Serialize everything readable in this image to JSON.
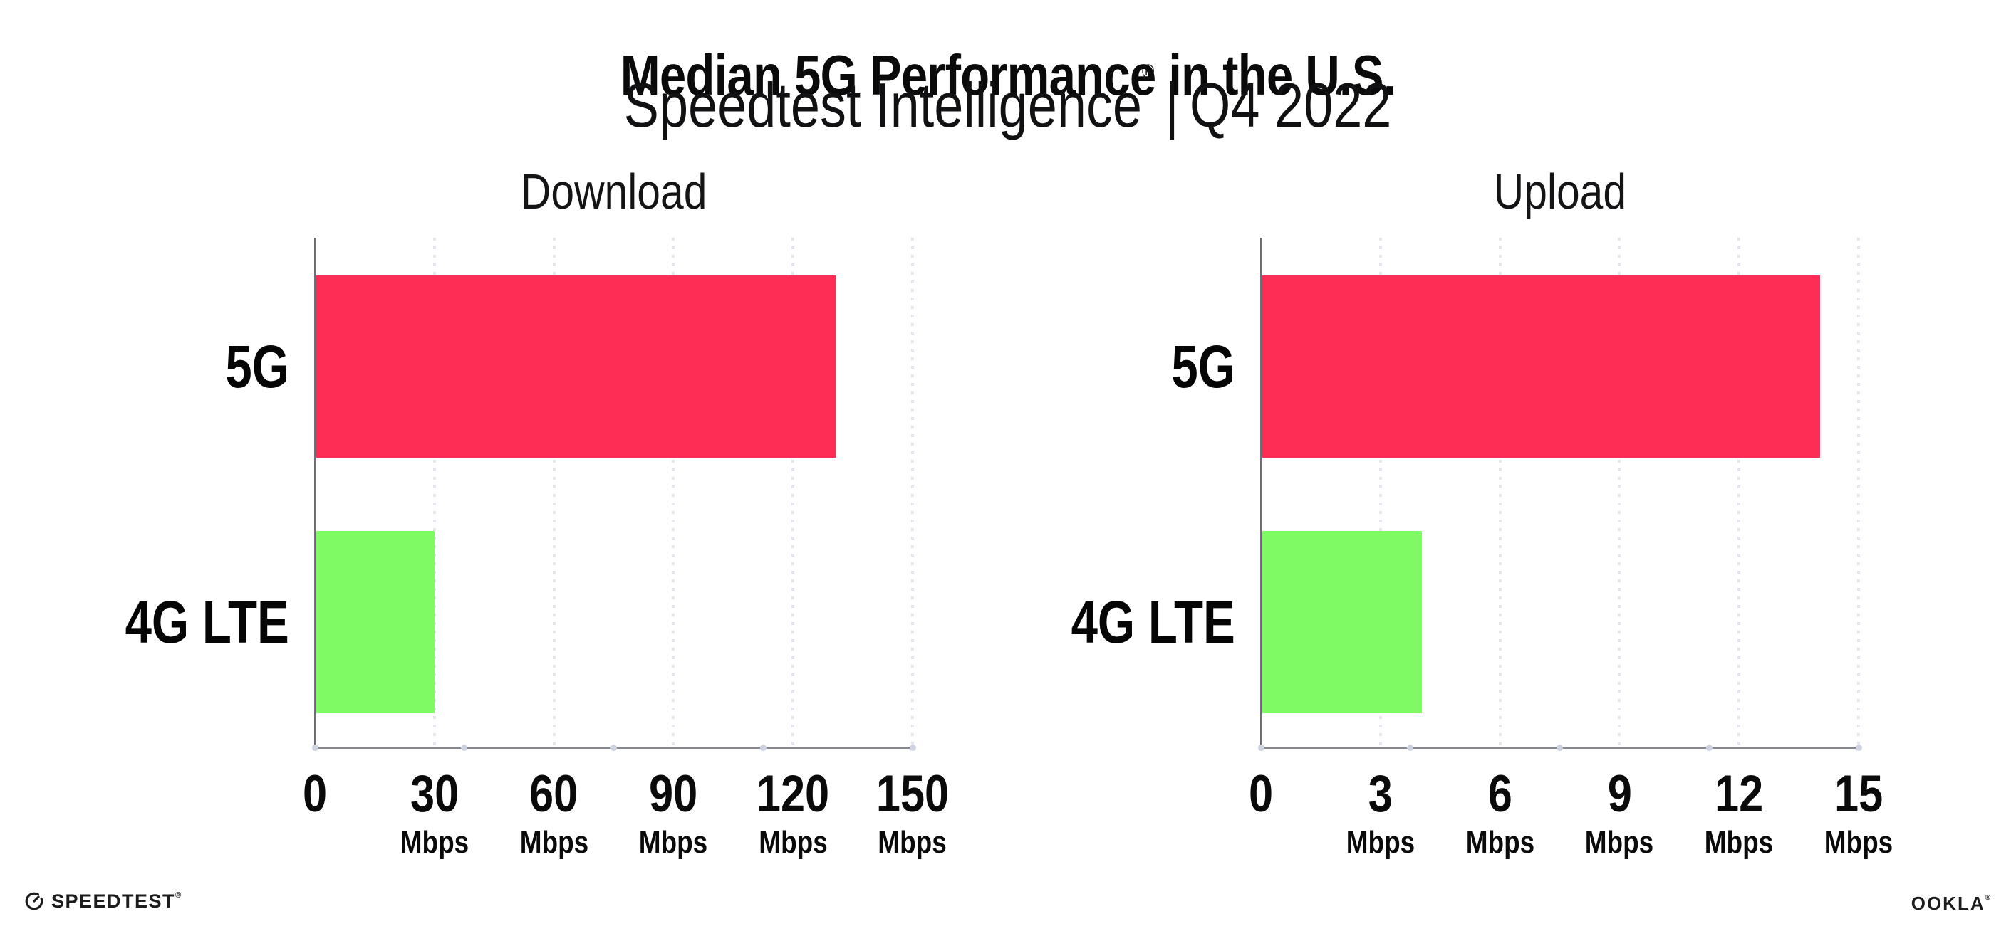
{
  "header": {
    "title": "Median 5G Performance in the U.S.",
    "subtitle_product": "Speedtest Intelligence",
    "subtitle_reg": "®",
    "subtitle_separator": "|",
    "subtitle_period": "Q4 2022"
  },
  "chart_data": [
    {
      "type": "bar",
      "orientation": "horizontal",
      "title": "Download",
      "categories": [
        "5G",
        "4G LTE"
      ],
      "values": [
        130.4,
        29.7
      ],
      "unit": "Mbps",
      "xlim": [
        0,
        150
      ],
      "xticks": [
        0,
        30,
        60,
        90,
        120,
        150
      ],
      "tick_unit_label": "Mbps",
      "bar_colors": [
        "#fe2d55",
        "#7ffa65"
      ],
      "grid": "vertical-dotted",
      "legend": "none"
    },
    {
      "type": "bar",
      "orientation": "horizontal",
      "title": "Upload",
      "categories": [
        "5G",
        "4G LTE"
      ],
      "values": [
        14.0,
        4.0
      ],
      "unit": "Mbps",
      "xlim": [
        0,
        15
      ],
      "xticks": [
        0,
        3,
        6,
        9,
        12,
        15
      ],
      "tick_unit_label": "Mbps",
      "bar_colors": [
        "#fe2d55",
        "#7ffa65"
      ],
      "grid": "vertical-dotted",
      "legend": "none"
    }
  ],
  "footer": {
    "speedtest_label": "SPEEDTEST",
    "speedtest_reg": "®",
    "ookla_label": "OOKLA",
    "ookla_reg": "®"
  },
  "colors": {
    "bar_5g": "#fe2d55",
    "bar_4g_lte": "#7ffa65",
    "grid_dot": "#e3e5ef",
    "x_axis": "#87878f",
    "y_axis": "#6e6e76",
    "axis_tick_dot": "#cdd3e0",
    "text": "#0a0a0b"
  }
}
